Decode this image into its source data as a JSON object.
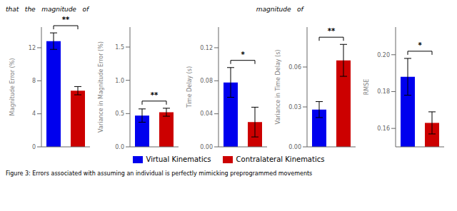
{
  "chart_data": [
    {
      "type": "bar",
      "ylabel": "Magnitude Error (%)",
      "categories": [
        null
      ],
      "series": [
        {
          "name": "Virtual Kinematics",
          "color": "#0000EE",
          "values": [
            12.8
          ],
          "errors": [
            1.0
          ]
        },
        {
          "name": "Contralateral Kinematics",
          "color": "#CC0000",
          "values": [
            6.8
          ],
          "errors": [
            0.5
          ]
        }
      ],
      "ylim": [
        0,
        14.5
      ],
      "yticks": [
        0,
        4,
        8,
        12
      ],
      "annotations": [
        "**"
      ],
      "tick_labels": "y"
    },
    {
      "type": "bar",
      "ylabel": "Variance in Magnitude Error (%)",
      "categories": [
        null
      ],
      "series": [
        {
          "name": "Virtual Kinematics",
          "color": "#0000EE",
          "values": [
            0.47
          ],
          "errors": [
            0.1
          ]
        },
        {
          "name": "Contralateral Kinematics",
          "color": "#CC0000",
          "values": [
            0.52
          ],
          "errors": [
            0.06
          ]
        }
      ],
      "ylim": [
        0,
        1.8
      ],
      "yticks": [
        {
          "value": 0,
          "label": "0.0"
        },
        0.5,
        {
          "value": 1.0,
          "label": "1.0"
        },
        1.5
      ],
      "annotations": [
        "**"
      ],
      "tick_labels": "y"
    },
    {
      "type": "bar",
      "ylabel": "Time Delay (s)",
      "categories": [
        null
      ],
      "series": [
        {
          "name": "Virtual Kinematics",
          "color": "#0000EE",
          "values": [
            0.078
          ],
          "errors": [
            0.018
          ]
        },
        {
          "name": "Contralateral Kinematics",
          "color": "#CC0000",
          "values": [
            0.03
          ],
          "errors": [
            0.018
          ]
        }
      ],
      "ylim": [
        0,
        0.145
      ],
      "yticks": [
        {
          "value": 0,
          "label": "0.00"
        },
        0.04,
        0.08,
        0.12
      ],
      "annotations": [
        "*"
      ],
      "tick_labels": "y"
    },
    {
      "type": "bar",
      "ylabel": "Variance in Time Delay (s)",
      "categories": [
        null
      ],
      "series": [
        {
          "name": "Virtual Kinematics",
          "color": "#0000EE",
          "values": [
            0.028
          ],
          "errors": [
            0.006
          ]
        },
        {
          "name": "Contralateral Kinematics",
          "color": "#CC0000",
          "values": [
            0.065
          ],
          "errors": [
            0.012
          ]
        }
      ],
      "ylim": [
        0,
        0.09
      ],
      "yticks": [
        {
          "value": 0,
          "label": "0.00"
        },
        0.03,
        0.06
      ],
      "annotations": [
        "**"
      ],
      "tick_labels": "y"
    },
    {
      "type": "bar",
      "ylabel": "RMSE",
      "categories": [
        null
      ],
      "series": [
        {
          "name": "Virtual Kinematics",
          "color": "#0000EE",
          "values": [
            0.188
          ],
          "errors": [
            0.01
          ]
        },
        {
          "name": "Contralateral Kinematics",
          "color": "#CC0000",
          "values": [
            0.163
          ],
          "errors": [
            0.006
          ]
        }
      ],
      "ylim": [
        0.15,
        0.215
      ],
      "yticks": [
        0.16,
        0.18,
        {
          "value": 0.2,
          "label": "0.20"
        }
      ],
      "annotations": [
        "*"
      ],
      "tick_labels": "y"
    }
  ],
  "legend": "bottom",
  "annotations": [
    "that   the   magnitude   of                                                                                  magnitude   of",
    "Figure 3: Errors associated with assuming an individual is perfectly mimicking preprogrammed movements"
  ]
}
